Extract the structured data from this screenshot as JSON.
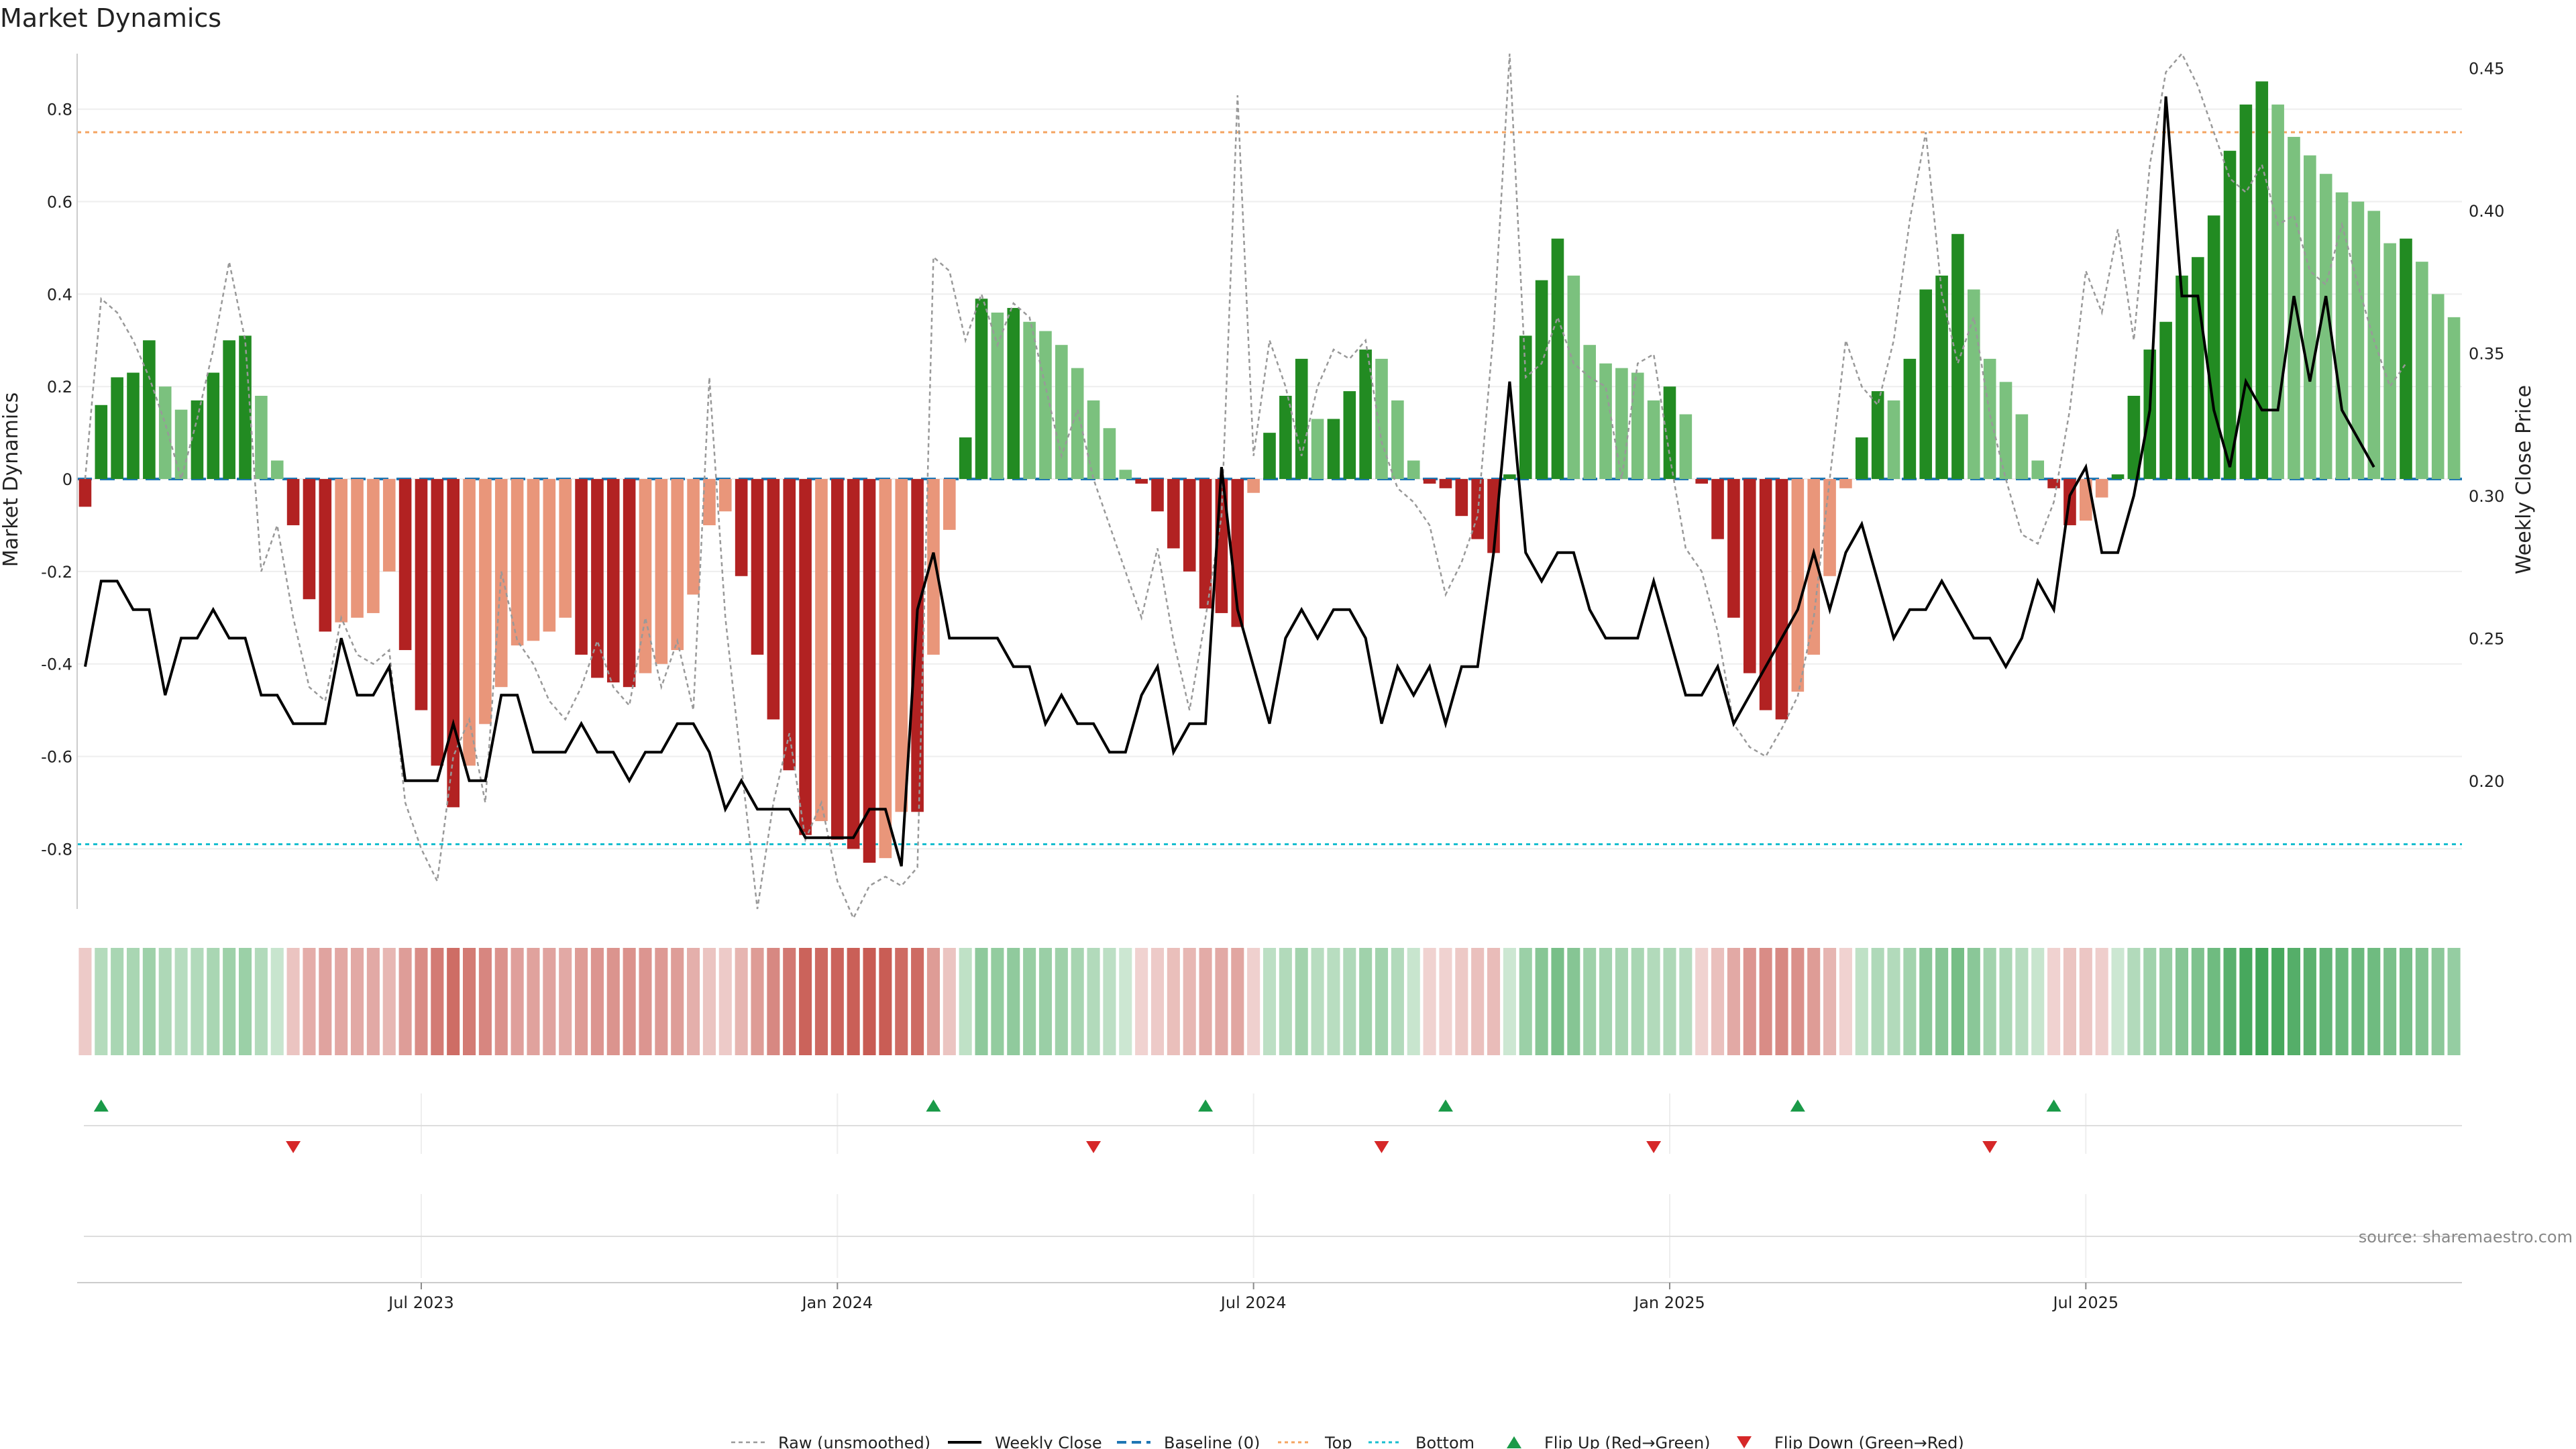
{
  "chart_data": {
    "title": "Market Dynamics",
    "type": "bar",
    "y_left": {
      "label": "Market Dynamics",
      "ticks": [
        "-0.8",
        "-0.6",
        "-0.4",
        "-0.2",
        "0",
        "0.2",
        "0.4",
        "0.6",
        "0.8"
      ],
      "ylim": [
        -0.93,
        0.92
      ]
    },
    "y_right": {
      "label": "Weekly Close Price",
      "ticks": [
        "0.20",
        "0.25",
        "0.30",
        "0.35",
        "0.40",
        "0.45"
      ],
      "ylim": [
        0.155,
        0.455
      ]
    },
    "x_ticks": [
      "Jul 2023",
      "Jan 2024",
      "Jul 2024",
      "Jan 2025",
      "Jul 2025"
    ],
    "x_tick_index": [
      21,
      47,
      73,
      99,
      125
    ],
    "top_threshold": 0.75,
    "bottom_threshold": -0.79,
    "colors": {
      "strong_green": "#228B22",
      "weak_green": "#7BC17E",
      "strong_red": "#B22222",
      "weak_red": "#E9967A",
      "raw": "#999999",
      "close": "#000000",
      "baseline": "#1f77b4",
      "top": "#F4A460",
      "bottom": "#17BECF",
      "flip_up": "#1a9a48",
      "flip_down": "#d62728"
    },
    "series": [
      {
        "name": "Market Dynamics",
        "values": [
          -0.06,
          0.16,
          0.22,
          0.23,
          0.3,
          0.2,
          0.15,
          0.17,
          0.23,
          0.3,
          0.31,
          0.18,
          0.04,
          -0.1,
          -0.26,
          -0.33,
          -0.31,
          -0.3,
          -0.29,
          -0.2,
          -0.37,
          -0.5,
          -0.62,
          -0.71,
          -0.62,
          -0.53,
          -0.45,
          -0.36,
          -0.35,
          -0.33,
          -0.3,
          -0.38,
          -0.43,
          -0.44,
          -0.45,
          -0.42,
          -0.4,
          -0.37,
          -0.25,
          -0.1,
          -0.07,
          -0.21,
          -0.38,
          -0.52,
          -0.63,
          -0.77,
          -0.74,
          -0.78,
          -0.8,
          -0.83,
          -0.82,
          -0.72,
          -0.72,
          -0.38,
          -0.11,
          0.09,
          0.39,
          0.36,
          0.37,
          0.34,
          0.32,
          0.29,
          0.24,
          0.17,
          0.11,
          0.02,
          -0.01,
          -0.07,
          -0.15,
          -0.2,
          -0.28,
          -0.29,
          -0.32,
          -0.03,
          0.1,
          0.18,
          0.26,
          0.13,
          0.13,
          0.19,
          0.28,
          0.26,
          0.17,
          0.04,
          -0.01,
          -0.02,
          -0.08,
          -0.13,
          -0.16,
          0.01,
          0.31,
          0.43,
          0.52,
          0.44,
          0.29,
          0.25,
          0.24,
          0.23,
          0.17,
          0.2,
          0.14,
          -0.01,
          -0.13,
          -0.3,
          -0.42,
          -0.5,
          -0.52,
          -0.46,
          -0.38,
          -0.21,
          -0.02,
          0.09,
          0.19,
          0.17,
          0.26,
          0.41,
          0.44,
          0.53,
          0.41,
          0.26,
          0.21,
          0.14,
          0.04,
          -0.02,
          -0.1,
          -0.09,
          -0.04,
          0.01,
          0.18,
          0.28,
          0.34,
          0.44,
          0.48,
          0.57,
          0.71,
          0.81,
          0.86,
          0.81,
          0.74,
          0.7,
          0.66,
          0.62,
          0.6,
          0.58,
          0.51,
          0.52,
          0.47,
          0.4,
          0.35
        ]
      },
      {
        "name": "Raw (unsmoothed)",
        "values": [
          0.0,
          0.39,
          0.36,
          0.3,
          0.22,
          0.12,
          0.0,
          0.13,
          0.28,
          0.47,
          0.3,
          -0.2,
          -0.1,
          -0.3,
          -0.45,
          -0.48,
          -0.3,
          -0.38,
          -0.4,
          -0.37,
          -0.7,
          -0.8,
          -0.87,
          -0.6,
          -0.52,
          -0.7,
          -0.2,
          -0.35,
          -0.4,
          -0.48,
          -0.52,
          -0.45,
          -0.35,
          -0.45,
          -0.49,
          -0.3,
          -0.45,
          -0.35,
          -0.5,
          0.22,
          -0.3,
          -0.62,
          -0.93,
          -0.7,
          -0.55,
          -0.78,
          -0.7,
          -0.87,
          -0.95,
          -0.88,
          -0.86,
          -0.88,
          -0.84,
          0.48,
          0.45,
          0.3,
          0.4,
          0.29,
          0.38,
          0.35,
          0.2,
          0.05,
          0.15,
          0.0,
          -0.1,
          -0.2,
          -0.3,
          -0.15,
          -0.35,
          -0.5,
          -0.3,
          -0.08,
          0.83,
          0.05,
          0.3,
          0.2,
          0.05,
          0.2,
          0.28,
          0.26,
          0.3,
          0.08,
          -0.02,
          -0.05,
          -0.1,
          -0.25,
          -0.18,
          -0.08,
          0.32,
          0.92,
          0.22,
          0.25,
          0.35,
          0.25,
          0.22,
          0.2,
          0.0,
          0.25,
          0.27,
          0.05,
          -0.15,
          -0.2,
          -0.33,
          -0.53,
          -0.58,
          -0.6,
          -0.54,
          -0.47,
          -0.3,
          0.0,
          0.3,
          0.2,
          0.16,
          0.3,
          0.56,
          0.75,
          0.4,
          0.25,
          0.35,
          0.14,
          0.0,
          -0.12,
          -0.14,
          -0.05,
          0.15,
          0.45,
          0.36,
          0.54,
          0.3,
          0.68,
          0.88,
          0.92,
          0.85,
          0.75,
          0.65,
          0.62,
          0.68,
          0.55,
          0.57,
          0.45,
          0.42,
          0.55,
          0.42,
          0.3,
          0.2,
          0.25
        ]
      },
      {
        "name": "Weekly Close",
        "values": [
          0.24,
          0.27,
          0.27,
          0.26,
          0.26,
          0.23,
          0.25,
          0.25,
          0.26,
          0.25,
          0.25,
          0.23,
          0.23,
          0.22,
          0.22,
          0.22,
          0.25,
          0.23,
          0.23,
          0.24,
          0.2,
          0.2,
          0.2,
          0.22,
          0.2,
          0.2,
          0.23,
          0.23,
          0.21,
          0.21,
          0.21,
          0.22,
          0.21,
          0.21,
          0.2,
          0.21,
          0.21,
          0.22,
          0.22,
          0.21,
          0.19,
          0.2,
          0.19,
          0.19,
          0.19,
          0.18,
          0.18,
          0.18,
          0.18,
          0.19,
          0.19,
          0.17,
          0.26,
          0.28,
          0.25,
          0.25,
          0.25,
          0.25,
          0.24,
          0.24,
          0.22,
          0.23,
          0.22,
          0.22,
          0.21,
          0.21,
          0.23,
          0.24,
          0.21,
          0.22,
          0.22,
          0.31,
          0.26,
          0.24,
          0.22,
          0.25,
          0.26,
          0.25,
          0.26,
          0.26,
          0.25,
          0.22,
          0.24,
          0.23,
          0.24,
          0.22,
          0.24,
          0.24,
          0.28,
          0.34,
          0.28,
          0.27,
          0.28,
          0.28,
          0.26,
          0.25,
          0.25,
          0.25,
          0.27,
          0.25,
          0.23,
          0.23,
          0.24,
          0.22,
          0.23,
          0.24,
          0.25,
          0.26,
          0.28,
          0.26,
          0.28,
          0.29,
          0.27,
          0.25,
          0.26,
          0.26,
          0.27,
          0.26,
          0.25,
          0.25,
          0.24,
          0.25,
          0.27,
          0.26,
          0.3,
          0.31,
          0.28,
          0.28,
          0.3,
          0.33,
          0.44,
          0.37,
          0.37,
          0.33,
          0.31,
          0.34,
          0.33,
          0.33,
          0.37,
          0.34,
          0.37,
          0.33,
          0.32,
          0.31
        ]
      }
    ],
    "flip_up_index": [
      1,
      53,
      70,
      85,
      107,
      123
    ],
    "flip_down_index": [
      13,
      63,
      81,
      98,
      119
    ],
    "legend": [
      "Raw (unsmoothed)",
      "Weekly Close",
      "Baseline (0)",
      "Top",
      "Bottom",
      "Flip Up (Red→Green)",
      "Flip Down (Green→Red)"
    ],
    "legend_position": "bottom-center"
  },
  "source": "source: sharemaestro.com"
}
